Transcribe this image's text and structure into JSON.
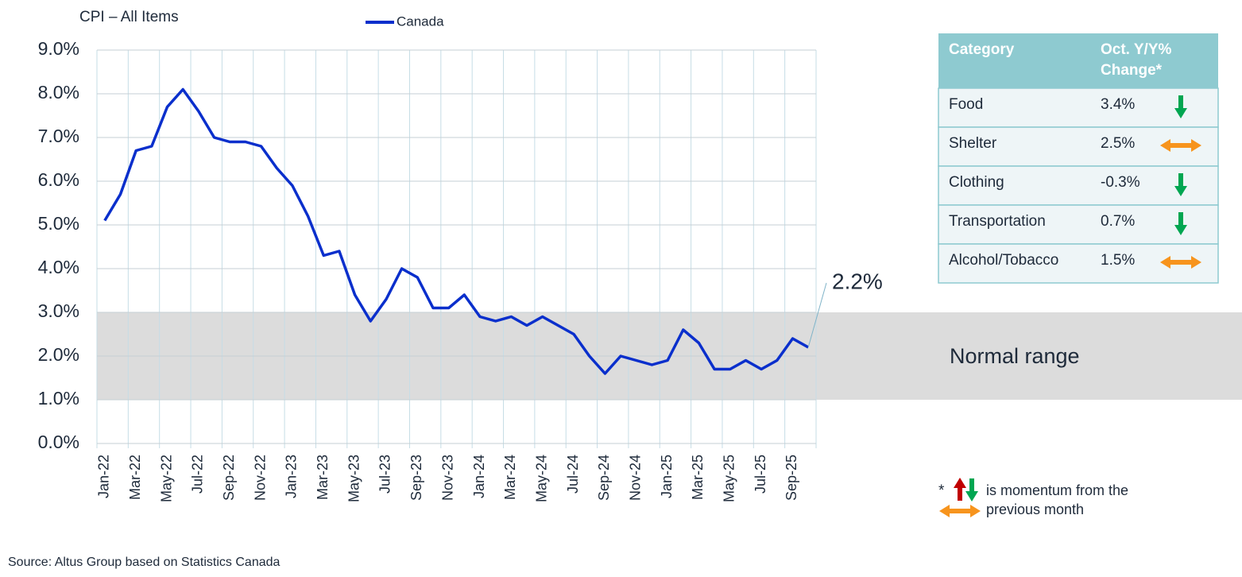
{
  "chart_data": {
    "type": "line",
    "title": "CPI – All Items",
    "categories": [
      "Jan-22",
      null,
      "Mar-22",
      null,
      "May-22",
      null,
      "Jul-22",
      null,
      "Sep-22",
      null,
      "Nov-22",
      null,
      "Jan-23",
      null,
      "Mar-23",
      null,
      "May-23",
      null,
      "Jul-23",
      null,
      "Sep-23",
      null,
      "Nov-23",
      null,
      "Jan-24",
      null,
      "Mar-24",
      null,
      "May-24",
      null,
      "Jul-24",
      null,
      "Sep-24",
      null,
      "Nov-24",
      null,
      "Jan-25",
      null,
      "Mar-25",
      null,
      "May-25",
      null,
      "Jul-25",
      null,
      "Sep-25",
      null
    ],
    "series": [
      {
        "name": "Canada",
        "color": "#0a2fcc",
        "values": [
          5.1,
          5.7,
          6.7,
          6.8,
          7.7,
          8.1,
          7.6,
          7.0,
          6.9,
          6.9,
          6.8,
          6.3,
          5.9,
          5.2,
          4.3,
          4.4,
          3.4,
          2.8,
          3.3,
          4.0,
          3.8,
          3.1,
          3.1,
          3.4,
          2.9,
          2.8,
          2.9,
          2.7,
          2.9,
          2.7,
          2.5,
          2.0,
          1.6,
          2.0,
          1.9,
          1.8,
          1.9,
          2.6,
          2.3,
          1.7,
          1.7,
          1.9,
          1.7,
          1.9,
          2.4,
          2.2
        ]
      }
    ],
    "annotation": "2.2%",
    "ylim": [
      0,
      9
    ],
    "yticks": [
      {
        "value": 0,
        "label": "0.0%"
      },
      {
        "value": 1,
        "label": "1.0%"
      },
      {
        "value": 2,
        "label": "2.0%"
      },
      {
        "value": 3,
        "label": "3.0%"
      },
      {
        "value": 4,
        "label": "4.0%"
      },
      {
        "value": 5,
        "label": "5.0%"
      },
      {
        "value": 6,
        "label": "6.0%"
      },
      {
        "value": 7,
        "label": "7.0%"
      },
      {
        "value": 8,
        "label": "8.0%"
      },
      {
        "value": 9,
        "label": "9.0%"
      }
    ],
    "grid": true,
    "normal_range": {
      "label": "Normal range",
      "range": [
        1,
        3
      ],
      "color": "#dcdcdc"
    }
  },
  "table": {
    "header": [
      "Category",
      "Oct. Y/Y% Change*"
    ],
    "rows": [
      [
        "Food",
        "3.4%",
        "down"
      ],
      [
        "Shelter",
        "2.5%",
        "flat"
      ],
      [
        "Clothing",
        "-0.3%",
        "down"
      ],
      [
        "Transportation",
        "0.7%",
        "down"
      ],
      [
        "Alcohol/Tobacco",
        "1.5%",
        "flat"
      ]
    ]
  },
  "footnote": {
    "mark": "*",
    "lines": [
      "is momentum from the",
      "previous month"
    ]
  },
  "source": "Source: Altus Group based on Statistics Canada"
}
